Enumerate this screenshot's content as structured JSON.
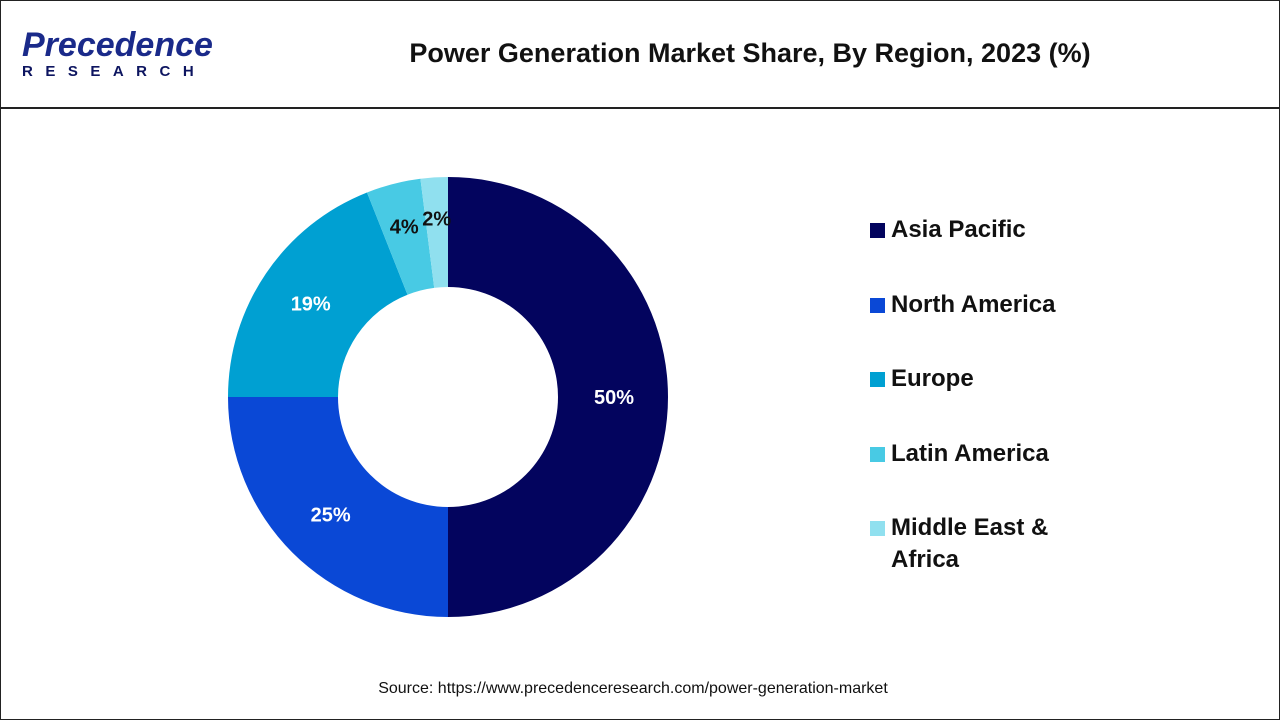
{
  "logo": {
    "line1": "Precedence",
    "line2": "RESEARCH"
  },
  "title": "Power Generation Market Share, By Region, 2023 (%)",
  "source": "Source: https://www.precedenceresearch.com/power-generation-market",
  "chart_data": {
    "type": "pie",
    "donut": true,
    "title": "Power Generation Market Share, By Region, 2023 (%)",
    "legend_position": "right",
    "categories": [
      "Asia Pacific",
      "North America",
      "Europe",
      "Latin America",
      "Middle East & Africa"
    ],
    "values": [
      50,
      25,
      19,
      4,
      2
    ],
    "labels": [
      "50%",
      "25%",
      "19%",
      "4%",
      "2%"
    ],
    "colors": [
      "#03045e",
      "#0a48d6",
      "#00a0d2",
      "#48cae4",
      "#90e0ef"
    ],
    "label_colors": [
      "#ffffff",
      "#ffffff",
      "#ffffff",
      "#111111",
      "#111111"
    ]
  }
}
